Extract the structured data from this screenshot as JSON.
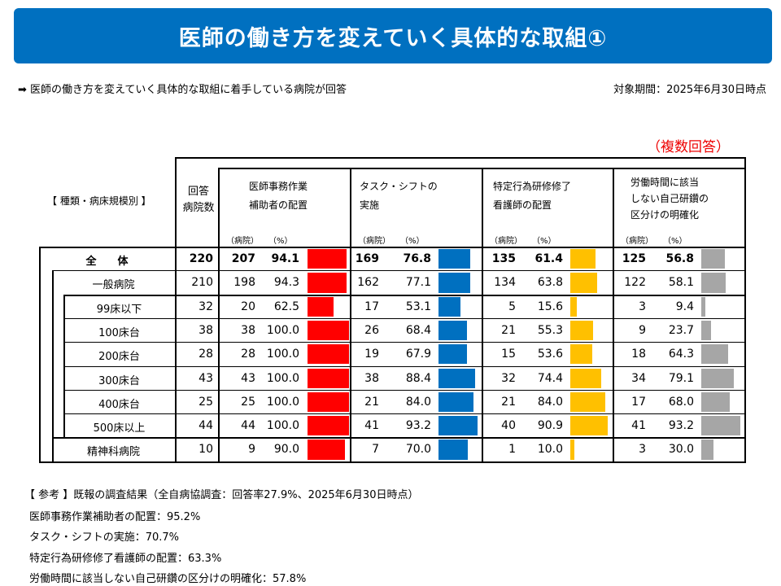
{
  "title": "医師の働き方を変えていく具体的な取組①",
  "subtitle": "医師の働き方を変えていく具体的な取組に着手している病院が回答",
  "date_label": "対象期間：2025年6月30日時点",
  "multi_answer": "（複数回答）",
  "header": {
    "category": "【 種類・病床規模別 】",
    "respondents": "回答\n病院数",
    "columns": [
      {
        "label": "医師事務作業\n補助者の配置",
        "color": "#ff0000"
      },
      {
        "label": "タスク・シフトの\n実施",
        "color": "#0070c0"
      },
      {
        "label": "特定行為研修修了\n看護師の配置",
        "color": "#ffc000"
      },
      {
        "label": "労働時間に該当\nしない自己研鑽の\n区分けの明確化",
        "color": "#a6a6a6"
      }
    ],
    "unit_count": "（病院）",
    "unit_pct": "（%）"
  },
  "rows": [
    {
      "label": "全　　体",
      "n": "220",
      "v": [
        [
          "207",
          "94.1"
        ],
        [
          "169",
          "76.8"
        ],
        [
          "135",
          "61.4"
        ],
        [
          "125",
          "56.8"
        ]
      ]
    },
    {
      "label": "一般病院",
      "n": "210",
      "v": [
        [
          "198",
          "94.3"
        ],
        [
          "162",
          "77.1"
        ],
        [
          "134",
          "63.8"
        ],
        [
          "122",
          "58.1"
        ]
      ]
    },
    {
      "label": "99床以下",
      "n": "32",
      "v": [
        [
          "20",
          "62.5"
        ],
        [
          "17",
          "53.1"
        ],
        [
          "5",
          "15.6"
        ],
        [
          "3",
          "9.4"
        ]
      ]
    },
    {
      "label": "100床台",
      "n": "38",
      "v": [
        [
          "38",
          "100.0"
        ],
        [
          "26",
          "68.4"
        ],
        [
          "21",
          "55.3"
        ],
        [
          "9",
          "23.7"
        ]
      ]
    },
    {
      "label": "200床台",
      "n": "28",
      "v": [
        [
          "28",
          "100.0"
        ],
        [
          "19",
          "67.9"
        ],
        [
          "15",
          "53.6"
        ],
        [
          "18",
          "64.3"
        ]
      ]
    },
    {
      "label": "300床台",
      "n": "43",
      "v": [
        [
          "43",
          "100.0"
        ],
        [
          "38",
          "88.4"
        ],
        [
          "32",
          "74.4"
        ],
        [
          "34",
          "79.1"
        ]
      ]
    },
    {
      "label": "400床台",
      "n": "25",
      "v": [
        [
          "25",
          "100.0"
        ],
        [
          "21",
          "84.0"
        ],
        [
          "21",
          "84.0"
        ],
        [
          "17",
          "68.0"
        ]
      ]
    },
    {
      "label": "500床以上",
      "n": "44",
      "v": [
        [
          "44",
          "100.0"
        ],
        [
          "41",
          "93.2"
        ],
        [
          "40",
          "90.9"
        ],
        [
          "41",
          "93.2"
        ]
      ]
    },
    {
      "label": "精神科病院",
      "n": "10",
      "v": [
        [
          "9",
          "90.0"
        ],
        [
          "7",
          "70.0"
        ],
        [
          "1",
          "10.0"
        ],
        [
          "3",
          "30.0"
        ]
      ]
    }
  ],
  "reference": {
    "heading": "【 参考 】既報の調査結果（全自病協調査：回答率27.9%、2025年6月30日時点）",
    "items": [
      "医師事務作業補助者の配置：95.2%",
      "タスク・シフトの実施：70.7%",
      "特定行為研修修了看護師の配置：63.3%",
      "労働時間に該当しない自己研鑽の区分けの明確化：57.8%"
    ]
  }
}
